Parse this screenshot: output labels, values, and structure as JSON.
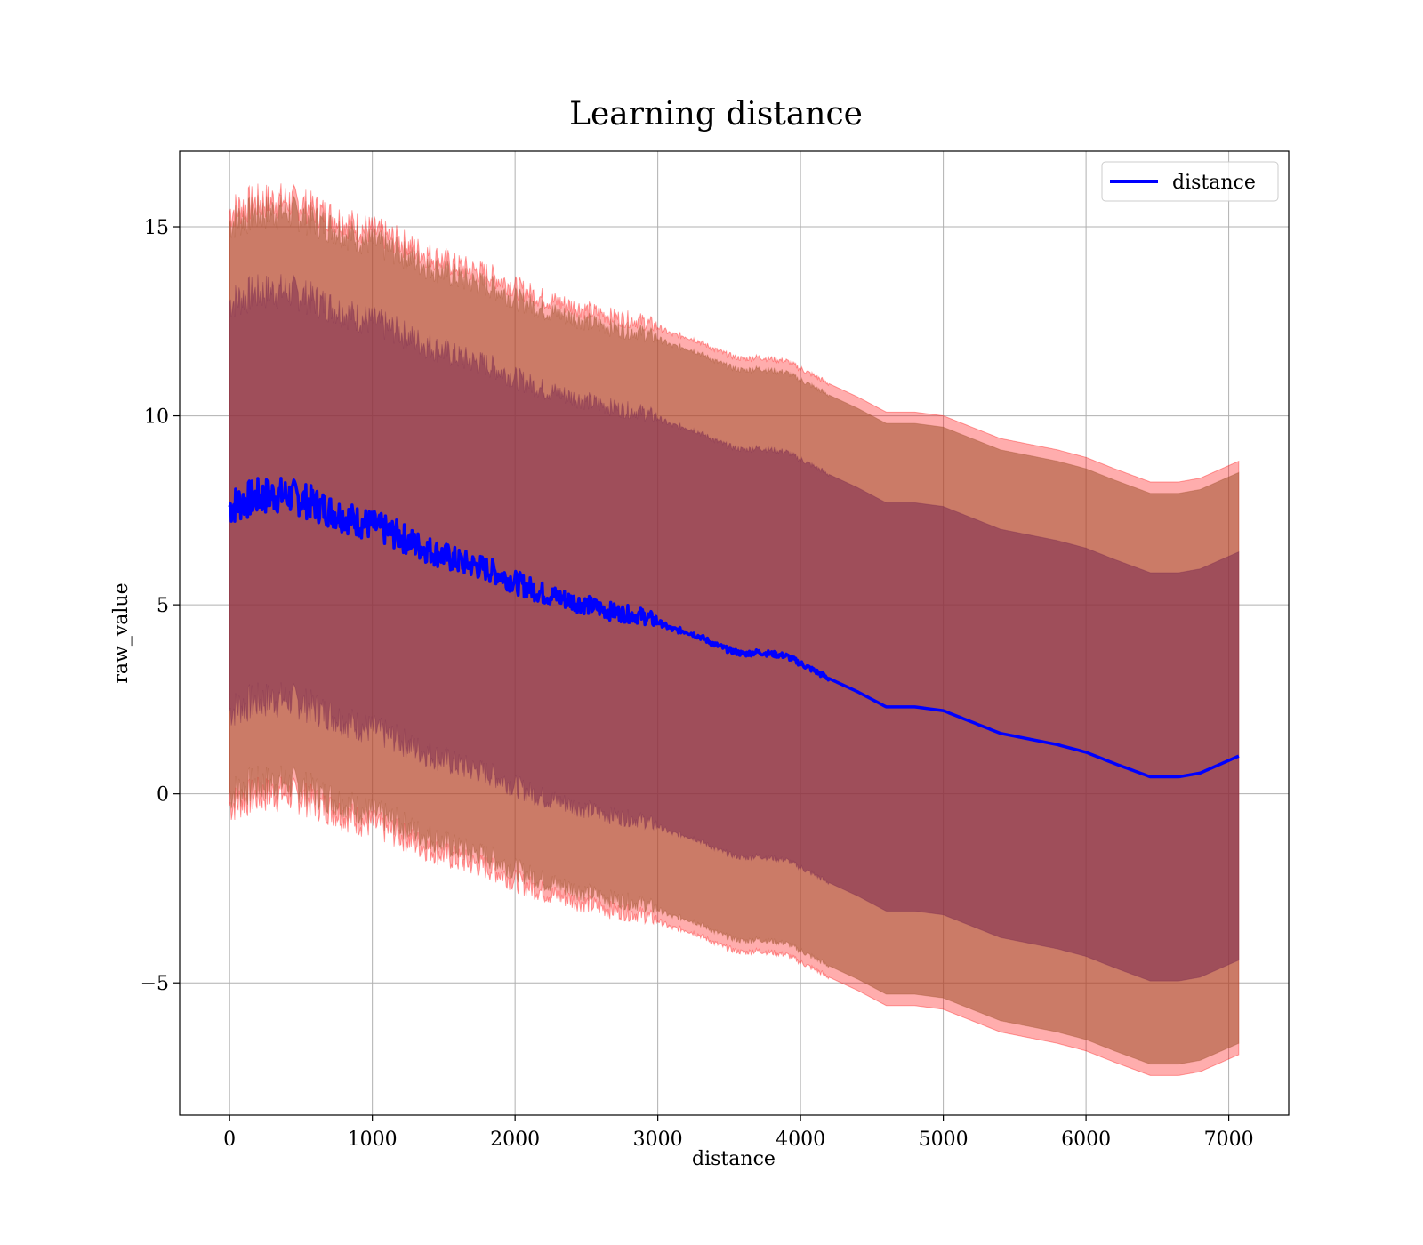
{
  "chart_data": {
    "type": "line",
    "title": "Learning distance",
    "xlabel": "distance",
    "ylabel": "raw_value",
    "xlim": [
      -350,
      7420
    ],
    "ylim": [
      -8.5,
      17.0
    ],
    "x_ticks": [
      0,
      1000,
      2000,
      3000,
      4000,
      5000,
      6000,
      7000
    ],
    "x_tick_labels": [
      "0",
      "1000",
      "2000",
      "3000",
      "4000",
      "5000",
      "6000",
      "7000"
    ],
    "y_ticks": [
      -5,
      0,
      5,
      10,
      15
    ],
    "y_tick_labels": [
      "−5",
      "0",
      "5",
      "10",
      "15"
    ],
    "grid": true,
    "legend": {
      "placement": "top-right",
      "entries": [
        "distance"
      ]
    },
    "colors": {
      "line": "#0000ff",
      "outer_band": "#ff0000",
      "middle_band": "#a0522d",
      "inner_band": "#7b2a50"
    },
    "series": [
      {
        "name": "distance",
        "x": [
          0,
          100,
          200,
          300,
          400,
          500,
          600,
          700,
          800,
          900,
          1000,
          1100,
          1200,
          1300,
          1400,
          1500,
          1600,
          1700,
          1800,
          1900,
          2000,
          2100,
          2200,
          2300,
          2400,
          2500,
          2600,
          2700,
          2800,
          2900,
          3000,
          3100,
          3200,
          3300,
          3400,
          3500,
          3600,
          3700,
          3800,
          3900,
          4000,
          4200,
          4400,
          4600,
          4800,
          5000,
          5200,
          5400,
          5600,
          5800,
          6000,
          6200,
          6450,
          6650,
          6800,
          7070
        ],
        "y": [
          7.6,
          7.75,
          7.85,
          7.9,
          7.9,
          7.8,
          7.65,
          7.5,
          7.35,
          7.2,
          7.1,
          6.95,
          6.8,
          6.6,
          6.45,
          6.3,
          6.15,
          6.05,
          5.95,
          5.8,
          5.6,
          5.45,
          5.3,
          5.2,
          5.1,
          5.0,
          4.9,
          4.8,
          4.75,
          4.7,
          4.55,
          4.35,
          4.3,
          4.15,
          3.95,
          3.8,
          3.7,
          3.75,
          3.7,
          3.65,
          3.45,
          3.05,
          2.7,
          2.3,
          2.3,
          2.2,
          1.9,
          1.6,
          1.45,
          1.3,
          1.1,
          0.8,
          0.45,
          0.45,
          0.55,
          1.0
        ]
      }
    ],
    "bands": [
      {
        "kind": "outer",
        "upper_offset": 7.8,
        "lower_offset": 7.9
      },
      {
        "kind": "middle",
        "upper_offset": 7.5,
        "lower_offset": 7.6
      },
      {
        "kind": "inner",
        "upper_offset": 5.4,
        "lower_offset": 5.4
      }
    ]
  }
}
